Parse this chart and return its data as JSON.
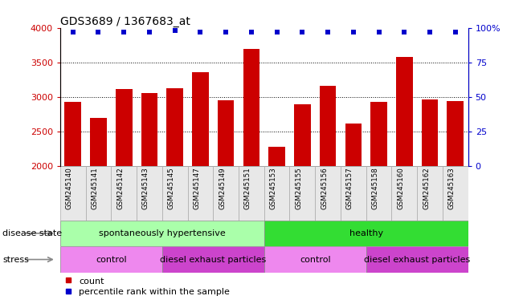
{
  "title": "GDS3689 / 1367683_at",
  "samples": [
    "GSM245140",
    "GSM245141",
    "GSM245142",
    "GSM245143",
    "GSM245145",
    "GSM245147",
    "GSM245149",
    "GSM245151",
    "GSM245153",
    "GSM245155",
    "GSM245156",
    "GSM245157",
    "GSM245158",
    "GSM245160",
    "GSM245162",
    "GSM245163"
  ],
  "counts": [
    2930,
    2700,
    3110,
    3060,
    3130,
    3360,
    2950,
    3690,
    2280,
    2900,
    3160,
    2620,
    2930,
    3580,
    2970,
    2940
  ],
  "percentile_ranks": [
    97,
    97,
    97,
    97,
    98,
    97,
    97,
    97,
    97,
    97,
    97,
    97,
    97,
    97,
    97,
    97
  ],
  "bar_color": "#cc0000",
  "dot_color": "#0000cc",
  "ylim_left": [
    2000,
    4000
  ],
  "ylim_right": [
    0,
    100
  ],
  "yticks_left": [
    2000,
    2500,
    3000,
    3500,
    4000
  ],
  "yticks_right": [
    0,
    25,
    50,
    75,
    100
  ],
  "disease_state_groups": [
    {
      "label": "spontaneously hypertensive",
      "start": 0,
      "end": 8,
      "color": "#aaffaa"
    },
    {
      "label": "healthy",
      "start": 8,
      "end": 16,
      "color": "#33dd33"
    }
  ],
  "stress_groups": [
    {
      "label": "control",
      "start": 0,
      "end": 4,
      "color": "#ee88ee"
    },
    {
      "label": "diesel exhaust particles",
      "start": 4,
      "end": 8,
      "color": "#cc44cc"
    },
    {
      "label": "control",
      "start": 8,
      "end": 12,
      "color": "#ee88ee"
    },
    {
      "label": "diesel exhaust particles",
      "start": 12,
      "end": 16,
      "color": "#cc44cc"
    }
  ],
  "disease_state_label": "disease state",
  "stress_label": "stress",
  "legend_count_label": "count",
  "legend_percentile_label": "percentile rank within the sample",
  "tick_label_color_left": "#cc0000",
  "tick_label_color_right": "#0000cc",
  "bar_width": 0.65
}
